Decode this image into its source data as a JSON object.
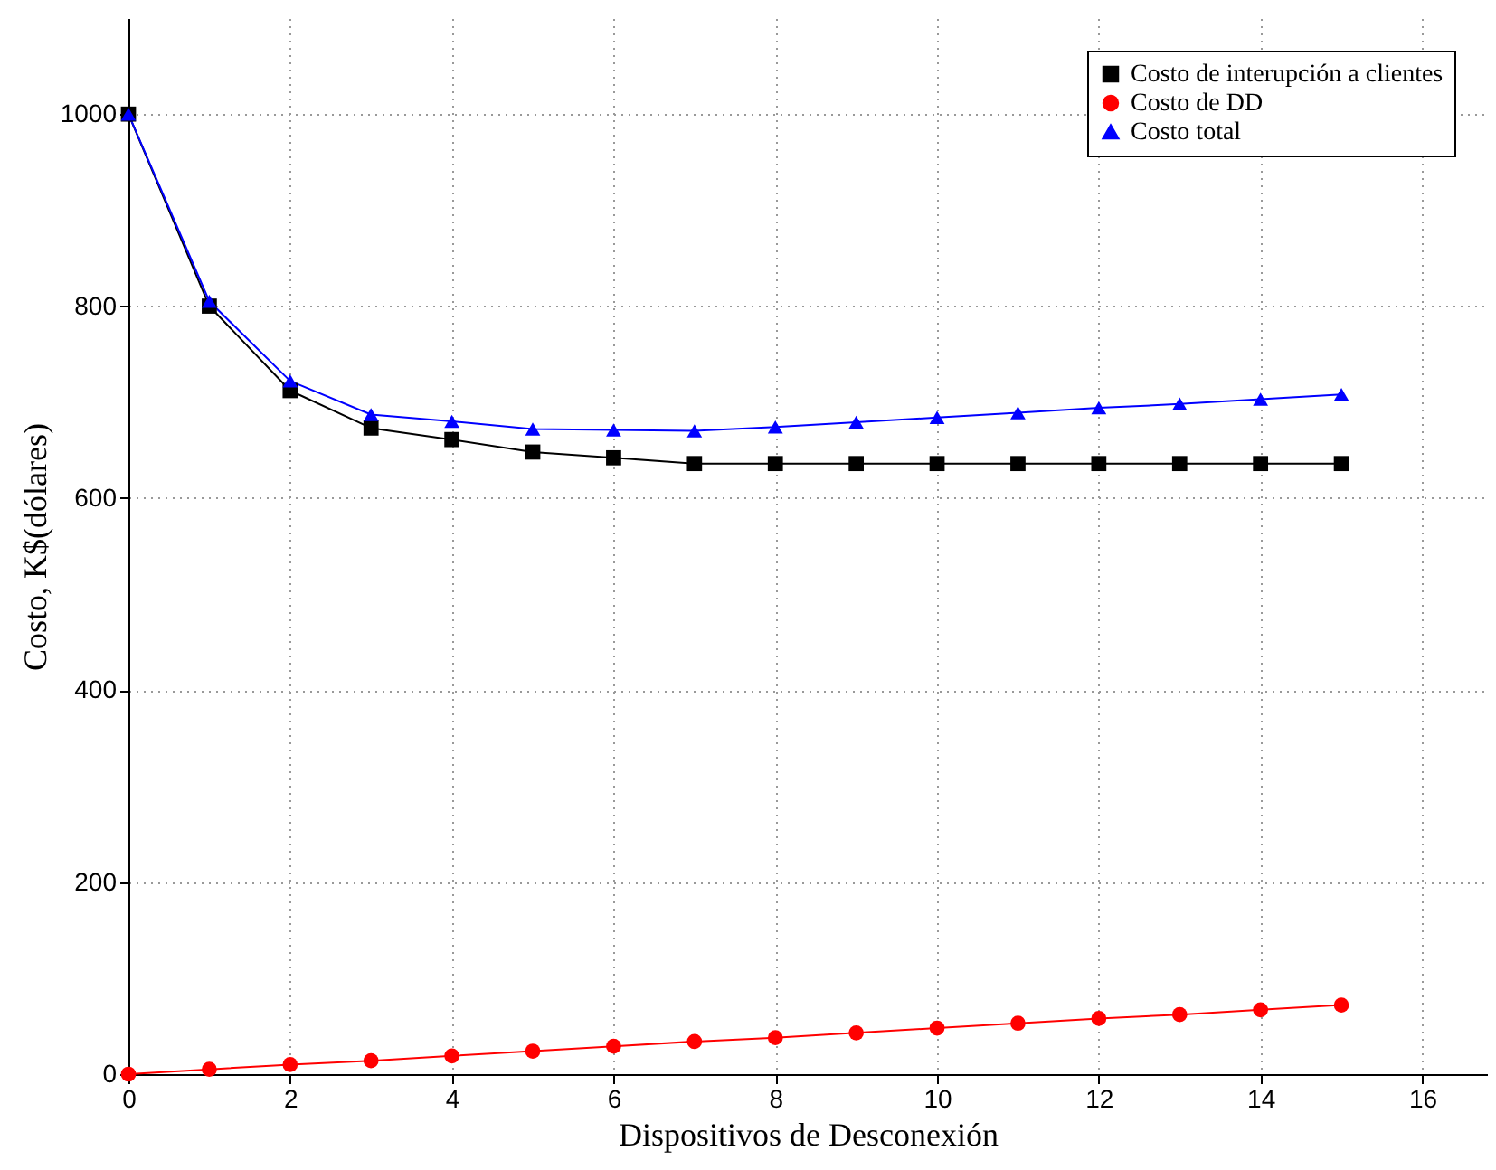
{
  "chart_data": {
    "type": "line",
    "xlabel": "Dispositivos de Desconexión",
    "ylabel": "Costo, K$(dólares)",
    "x": [
      0,
      1,
      2,
      3,
      4,
      5,
      6,
      7,
      8,
      9,
      10,
      11,
      12,
      13,
      14,
      15
    ],
    "xlim": [
      0,
      16.8
    ],
    "xticks": [
      0,
      2,
      4,
      6,
      8,
      10,
      12,
      14,
      16
    ],
    "ylim": [
      0,
      1100
    ],
    "yticks": [
      0,
      200,
      400,
      600,
      800,
      1000
    ],
    "grid": true,
    "legend": "top right",
    "line_style": "solid",
    "series": [
      {
        "name": "Costo de interupción a clientes",
        "color": "#000000",
        "marker": "square",
        "values": [
          1000,
          800,
          712,
          673,
          661,
          648,
          642,
          636,
          636,
          636,
          636,
          636,
          636,
          636,
          636,
          636
        ]
      },
      {
        "name": "Costo de DD",
        "color": "#ff0000",
        "marker": "circle",
        "values": [
          0,
          5,
          10,
          14,
          19,
          24,
          29,
          34,
          38,
          43,
          48,
          53,
          58,
          62,
          67,
          72
        ]
      },
      {
        "name": "Costo total",
        "color": "#0000ff",
        "marker": "triangle",
        "values": [
          1000,
          805,
          722,
          687,
          680,
          672,
          671,
          670,
          674,
          679,
          684,
          689,
          694,
          698,
          703,
          708
        ]
      }
    ]
  }
}
